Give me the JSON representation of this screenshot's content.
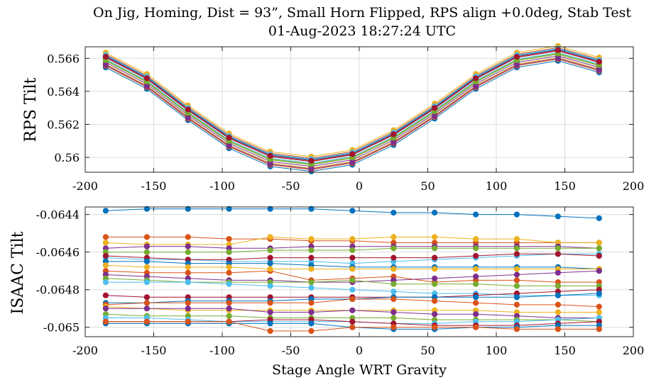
{
  "figure": {
    "title_line1": "On Jig, Homing, Dist = 93”, Small Horn Flipped, RPS align +0.0deg, Stab Test",
    "title_line2": "01-Aug-2023 18:27:24 UTC"
  },
  "colors": [
    "#0072BD",
    "#D95319",
    "#EDB120",
    "#7E2F8E",
    "#77AC30",
    "#4DBEEE",
    "#A2142F"
  ],
  "chart_data": [
    {
      "type": "line",
      "title": "",
      "xlabel": "",
      "ylabel": "RPS Tilt",
      "xlim": [
        -200,
        200
      ],
      "ylim": [
        0.5591,
        0.5667
      ],
      "xticks": [
        -200,
        -150,
        -100,
        -50,
        0,
        50,
        100,
        150,
        200
      ],
      "xtick_labels": [
        "-200",
        "-150",
        "-100",
        "-50",
        "0",
        "50",
        "100",
        "150",
        "200"
      ],
      "yticks": [
        0.56,
        0.562,
        0.564,
        0.566
      ],
      "ytick_labels": [
        "0.56",
        "0.562",
        "0.564",
        "0.566"
      ],
      "grid": true,
      "markers": true,
      "x": [
        -185,
        -155,
        -125,
        -95,
        -65,
        -35,
        -5,
        25,
        55,
        85,
        115,
        145,
        175
      ],
      "base": [
        0.5659,
        0.5646,
        0.5627,
        0.561,
        0.5599,
        0.5596,
        0.56,
        0.5612,
        0.5628,
        0.5646,
        0.5659,
        0.5663,
        0.5656
      ],
      "offsets": [
        -0.00045,
        -0.00035,
        -0.00025,
        -0.00015,
        -5e-05,
        5e-05,
        0.00015,
        0.00025,
        0.00035,
        0.00045,
        -0.0003,
        0.0,
        0.0003,
        0.0002
      ]
    },
    {
      "type": "line",
      "title": "",
      "xlabel": "Stage Angle WRT Gravity",
      "ylabel": "ISAAC Tilt",
      "xlim": [
        -200,
        200
      ],
      "ylim": [
        -0.06505,
        -0.06436
      ],
      "xticks": [
        -200,
        -150,
        -100,
        -50,
        0,
        50,
        100,
        150,
        200
      ],
      "xtick_labels": [
        "-200",
        "-150",
        "-100",
        "-50",
        "0",
        "50",
        "100",
        "150",
        "200"
      ],
      "yticks": [
        -0.065,
        -0.0648,
        -0.0646,
        -0.0644
      ],
      "ytick_labels": [
        "-0.065",
        "-0.0648",
        "-0.0646",
        "-0.0644"
      ],
      "grid": true,
      "markers": true,
      "x": [
        -185,
        -155,
        -125,
        -95,
        -65,
        -35,
        -5,
        25,
        55,
        85,
        115,
        145,
        175
      ],
      "series": [
        {
          "values": [
            -0.06438,
            -0.06437,
            -0.06437,
            -0.06437,
            -0.06437,
            -0.06437,
            -0.06438,
            -0.06439,
            -0.06439,
            -0.0644,
            -0.0644,
            -0.06441,
            -0.06442
          ]
        },
        {
          "values": [
            -0.06452,
            -0.06452,
            -0.06452,
            -0.06453,
            -0.06453,
            -0.06454,
            -0.06454,
            -0.06455,
            -0.06455,
            -0.06455,
            -0.06455,
            -0.06455,
            -0.06455
          ]
        },
        {
          "values": [
            -0.06455,
            -0.06456,
            -0.06456,
            -0.06456,
            -0.06452,
            -0.06453,
            -0.06453,
            -0.06452,
            -0.06452,
            -0.06453,
            -0.06453,
            -0.06455,
            -0.06455
          ]
        },
        {
          "values": [
            -0.06458,
            -0.06457,
            -0.06457,
            -0.06458,
            -0.06458,
            -0.06457,
            -0.06457,
            -0.06457,
            -0.06457,
            -0.06457,
            -0.06457,
            -0.06457,
            -0.06458
          ]
        },
        {
          "values": [
            -0.0646,
            -0.0646,
            -0.0646,
            -0.0646,
            -0.06459,
            -0.06459,
            -0.06459,
            -0.06458,
            -0.06458,
            -0.06458,
            -0.06458,
            -0.06458,
            -0.06458
          ]
        },
        {
          "values": [
            -0.06463,
            -0.06464,
            -0.06464,
            -0.06465,
            -0.06465,
            -0.06465,
            -0.06466,
            -0.06465,
            -0.06464,
            -0.06463,
            -0.06462,
            -0.06461,
            -0.06461
          ]
        },
        {
          "values": [
            -0.06462,
            -0.06463,
            -0.06464,
            -0.06464,
            -0.06463,
            -0.06463,
            -0.06463,
            -0.06463,
            -0.06463,
            -0.06462,
            -0.06461,
            -0.06461,
            -0.06462
          ]
        },
        {
          "values": [
            -0.06465,
            -0.06465,
            -0.06466,
            -0.06466,
            -0.06466,
            -0.06467,
            -0.06468,
            -0.06468,
            -0.06468,
            -0.06468,
            -0.06468,
            -0.06468,
            -0.06469
          ]
        },
        {
          "values": [
            -0.0647,
            -0.06471,
            -0.06471,
            -0.06471,
            -0.0647,
            -0.06475,
            -0.06474,
            -0.06473,
            -0.06476,
            -0.06475,
            -0.06475,
            -0.06476,
            -0.06476
          ]
        },
        {
          "values": [
            -0.06467,
            -0.06468,
            -0.06468,
            -0.06468,
            -0.06469,
            -0.06469,
            -0.06469,
            -0.06469,
            -0.06469,
            -0.06469,
            -0.06469,
            -0.06469,
            -0.06469
          ]
        },
        {
          "values": [
            -0.06472,
            -0.06473,
            -0.06474,
            -0.06475,
            -0.06475,
            -0.06476,
            -0.06476,
            -0.06475,
            -0.06474,
            -0.06473,
            -0.06472,
            -0.06471,
            -0.0647
          ]
        },
        {
          "values": [
            -0.06474,
            -0.06475,
            -0.06476,
            -0.06476,
            -0.06476,
            -0.06476,
            -0.06475,
            -0.06477,
            -0.06477,
            -0.06477,
            -0.06478,
            -0.06478,
            -0.06478
          ]
        },
        {
          "values": [
            -0.06476,
            -0.06476,
            -0.06476,
            -0.06477,
            -0.06478,
            -0.06479,
            -0.0648,
            -0.06481,
            -0.06482,
            -0.06482,
            -0.06483,
            -0.06483,
            -0.06483
          ]
        },
        {
          "values": [
            -0.06483,
            -0.06484,
            -0.06484,
            -0.06484,
            -0.06484,
            -0.06484,
            -0.06484,
            -0.06484,
            -0.06484,
            -0.06483,
            -0.06482,
            -0.06481,
            -0.0648
          ]
        },
        {
          "values": [
            -0.06487,
            -0.06487,
            -0.06486,
            -0.06486,
            -0.06486,
            -0.06485,
            -0.06485,
            -0.06484,
            -0.06484,
            -0.06484,
            -0.06484,
            -0.06483,
            -0.06482
          ]
        },
        {
          "values": [
            -0.06488,
            -0.06487,
            -0.06487,
            -0.06487,
            -0.06487,
            -0.06487,
            -0.06485,
            -0.06485,
            -0.06486,
            -0.06487,
            -0.06488,
            -0.06488,
            -0.06489
          ]
        },
        {
          "values": [
            -0.06489,
            -0.0649,
            -0.06491,
            -0.06491,
            -0.06491,
            -0.06491,
            -0.06491,
            -0.06491,
            -0.06491,
            -0.06491,
            -0.06492,
            -0.06492,
            -0.06492
          ]
        },
        {
          "values": [
            -0.0649,
            -0.0649,
            -0.0649,
            -0.0649,
            -0.06492,
            -0.06492,
            -0.06491,
            -0.06492,
            -0.06493,
            -0.06493,
            -0.06494,
            -0.06495,
            -0.06495
          ]
        },
        {
          "values": [
            -0.06493,
            -0.06494,
            -0.06494,
            -0.06494,
            -0.06495,
            -0.06495,
            -0.06495,
            -0.06495,
            -0.06496,
            -0.06496,
            -0.06496,
            -0.06496,
            -0.06497
          ]
        },
        {
          "values": [
            -0.06495,
            -0.06495,
            -0.06496,
            -0.06497,
            -0.06497,
            -0.06497,
            -0.06497,
            -0.06498,
            -0.06498,
            -0.06497,
            -0.06497,
            -0.06496,
            -0.06495
          ]
        },
        {
          "values": [
            -0.06497,
            -0.06497,
            -0.06497,
            -0.06497,
            -0.06496,
            -0.06496,
            -0.06497,
            -0.06498,
            -0.06499,
            -0.06499,
            -0.06499,
            -0.06498,
            -0.06497
          ]
        },
        {
          "values": [
            -0.06498,
            -0.06498,
            -0.06498,
            -0.06498,
            -0.06498,
            -0.06498,
            -0.065,
            -0.06501,
            -0.06501,
            -0.065,
            -0.065,
            -0.06499,
            -0.06499
          ]
        },
        {
          "values": [
            -0.06497,
            -0.06497,
            -0.06497,
            -0.06497,
            -0.06502,
            -0.06502,
            -0.065,
            -0.065,
            -0.065,
            -0.065,
            -0.06501,
            -0.06501,
            -0.06501
          ]
        }
      ]
    }
  ]
}
